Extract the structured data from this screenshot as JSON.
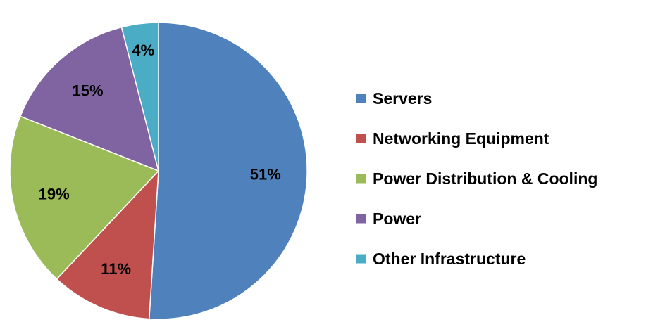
{
  "chart_data": {
    "type": "pie",
    "start_angle_deg": 0,
    "direction": "clockwise",
    "legend_position": "right",
    "slices": [
      {
        "label": "Servers",
        "value": 51,
        "display": "51%",
        "color": "#4F81BD"
      },
      {
        "label": "Networking Equipment",
        "value": 11,
        "display": "11%",
        "color": "#C0504D"
      },
      {
        "label": "Power Distribution & Cooling",
        "value": 19,
        "display": "19%",
        "color": "#9BBB59"
      },
      {
        "label": "Power",
        "value": 15,
        "display": "15%",
        "color": "#8064A2"
      },
      {
        "label": "Other Infrastructure",
        "value": 4,
        "display": "4%",
        "color": "#4BACC6"
      }
    ]
  }
}
